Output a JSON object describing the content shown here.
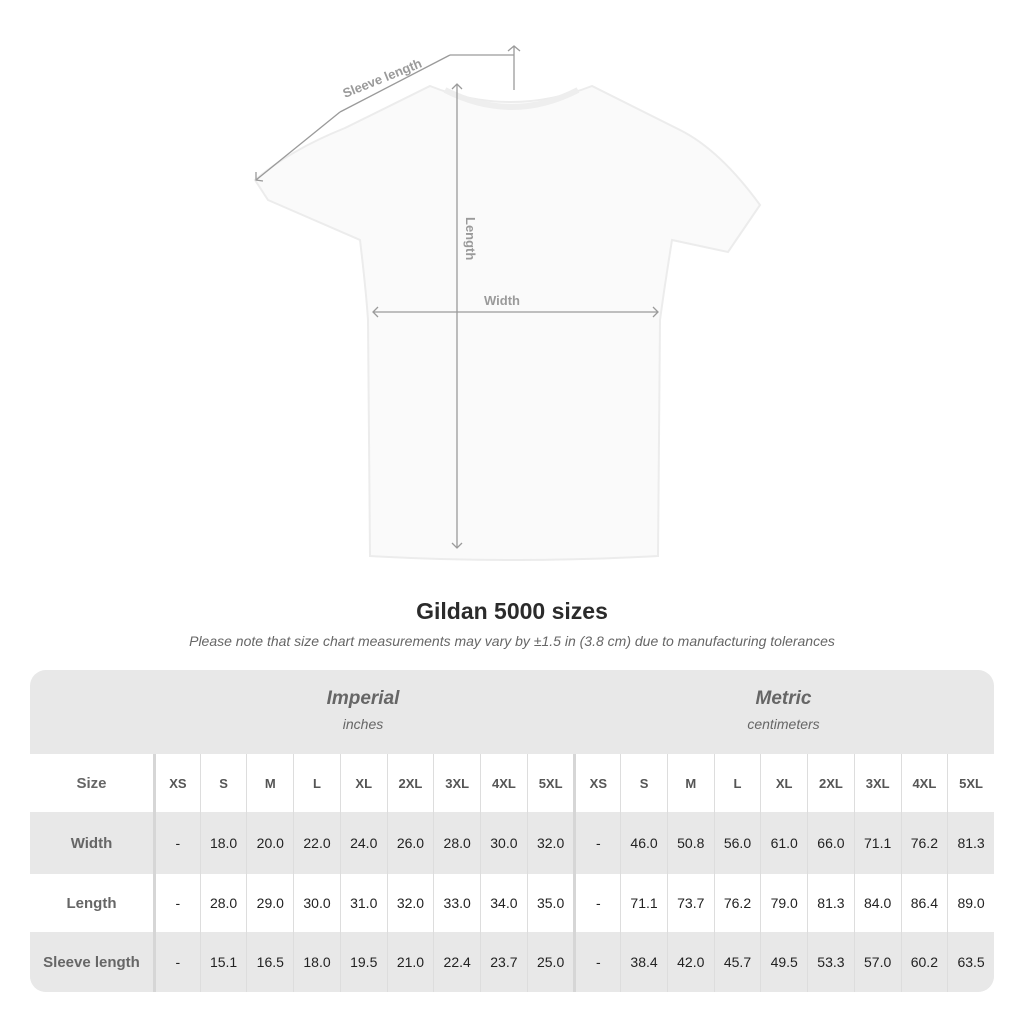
{
  "diagram": {
    "sleeve_label": "Sleeve length",
    "length_label": "Length",
    "width_label": "Width"
  },
  "title": "Gildan 5000 sizes",
  "note": "Please note that size chart measurements may vary by ±1.5 in (3.8 cm) due to manufacturing tolerances",
  "imperial": {
    "name": "Imperial",
    "unit": "inches"
  },
  "metric": {
    "name": "Metric",
    "unit": "centimeters"
  },
  "size_label": "Size",
  "sizes": [
    "XS",
    "S",
    "M",
    "L",
    "XL",
    "2XL",
    "3XL",
    "4XL",
    "5XL"
  ],
  "rows": [
    {
      "label": "Width",
      "imperial": [
        "-",
        "18.0",
        "20.0",
        "22.0",
        "24.0",
        "26.0",
        "28.0",
        "30.0",
        "32.0"
      ],
      "metric": [
        "-",
        "46.0",
        "50.8",
        "56.0",
        "61.0",
        "66.0",
        "71.1",
        "76.2",
        "81.3"
      ]
    },
    {
      "label": "Length",
      "imperial": [
        "-",
        "28.0",
        "29.0",
        "30.0",
        "31.0",
        "32.0",
        "33.0",
        "34.0",
        "35.0"
      ],
      "metric": [
        "-",
        "71.1",
        "73.7",
        "76.2",
        "79.0",
        "81.3",
        "84.0",
        "86.4",
        "89.0"
      ]
    },
    {
      "label": "Sleeve length",
      "imperial": [
        "-",
        "15.1",
        "16.5",
        "18.0",
        "19.5",
        "21.0",
        "22.4",
        "23.7",
        "25.0"
      ],
      "metric": [
        "-",
        "38.4",
        "42.0",
        "45.7",
        "49.5",
        "53.3",
        "57.0",
        "60.2",
        "63.5"
      ]
    }
  ],
  "colors": {
    "band": "#e8e8e8",
    "text": "#222222",
    "muted": "#666666",
    "measure": "#9a9a9a"
  }
}
